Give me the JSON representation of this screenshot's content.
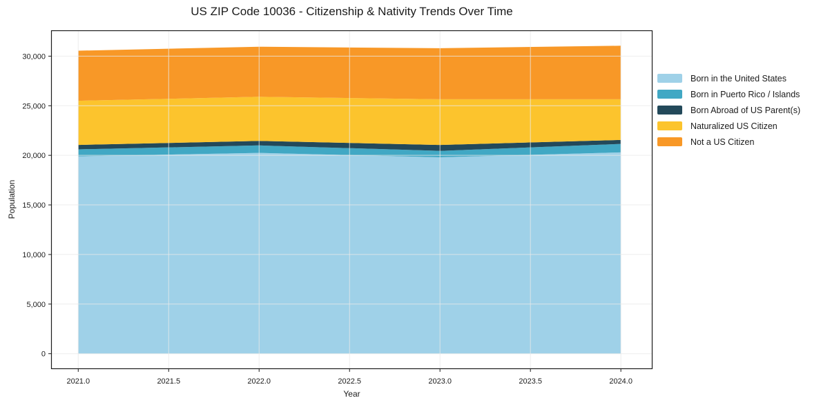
{
  "chart_data": {
    "type": "area",
    "stacked": true,
    "title": "US ZIP Code 10036 - Citizenship & Nativity Trends Over Time",
    "xlabel": "Year",
    "ylabel": "Population",
    "x": [
      2021,
      2022,
      2023,
      2024
    ],
    "series": [
      {
        "name": "Born in the United States",
        "color": "#9FD1E8",
        "values": [
          19900,
          20250,
          19800,
          20300
        ]
      },
      {
        "name": "Born in Puerto Rico / Islands",
        "color": "#41A8C4",
        "values": [
          700,
          750,
          650,
          850
        ]
      },
      {
        "name": "Born Abroad of US Parent(s)",
        "color": "#23495A",
        "values": [
          450,
          450,
          600,
          400
        ]
      },
      {
        "name": "Naturalized US Citizen",
        "color": "#FCC42D",
        "values": [
          4450,
          4450,
          4600,
          4100
        ]
      },
      {
        "name": "Not a US Citizen",
        "color": "#F89827",
        "values": [
          5050,
          5050,
          5150,
          5400
        ]
      }
    ],
    "totals": [
      30550,
      30950,
      30800,
      31050
    ],
    "x_ticks": [
      2021.0,
      2021.5,
      2022.0,
      2022.5,
      2023.0,
      2023.5,
      2024.0
    ],
    "x_tick_labels": [
      "2021.0",
      "2021.5",
      "2022.0",
      "2022.5",
      "2023.0",
      "2023.5",
      "2024.0"
    ],
    "y_ticks": [
      0,
      5000,
      10000,
      15000,
      20000,
      25000,
      30000
    ],
    "y_tick_labels": [
      "0",
      "5,000",
      "10,000",
      "15,000",
      "20,000",
      "25,000",
      "30,000"
    ],
    "xlim": [
      2020.85,
      2024.175
    ],
    "ylim": [
      -1552,
      32602
    ],
    "grid": true,
    "legend_position": "right",
    "colors": {
      "spine": "#1a1a1a",
      "grid": "#e8e8e8",
      "tick_text": "#1a1a1a",
      "background": "#ffffff"
    }
  }
}
